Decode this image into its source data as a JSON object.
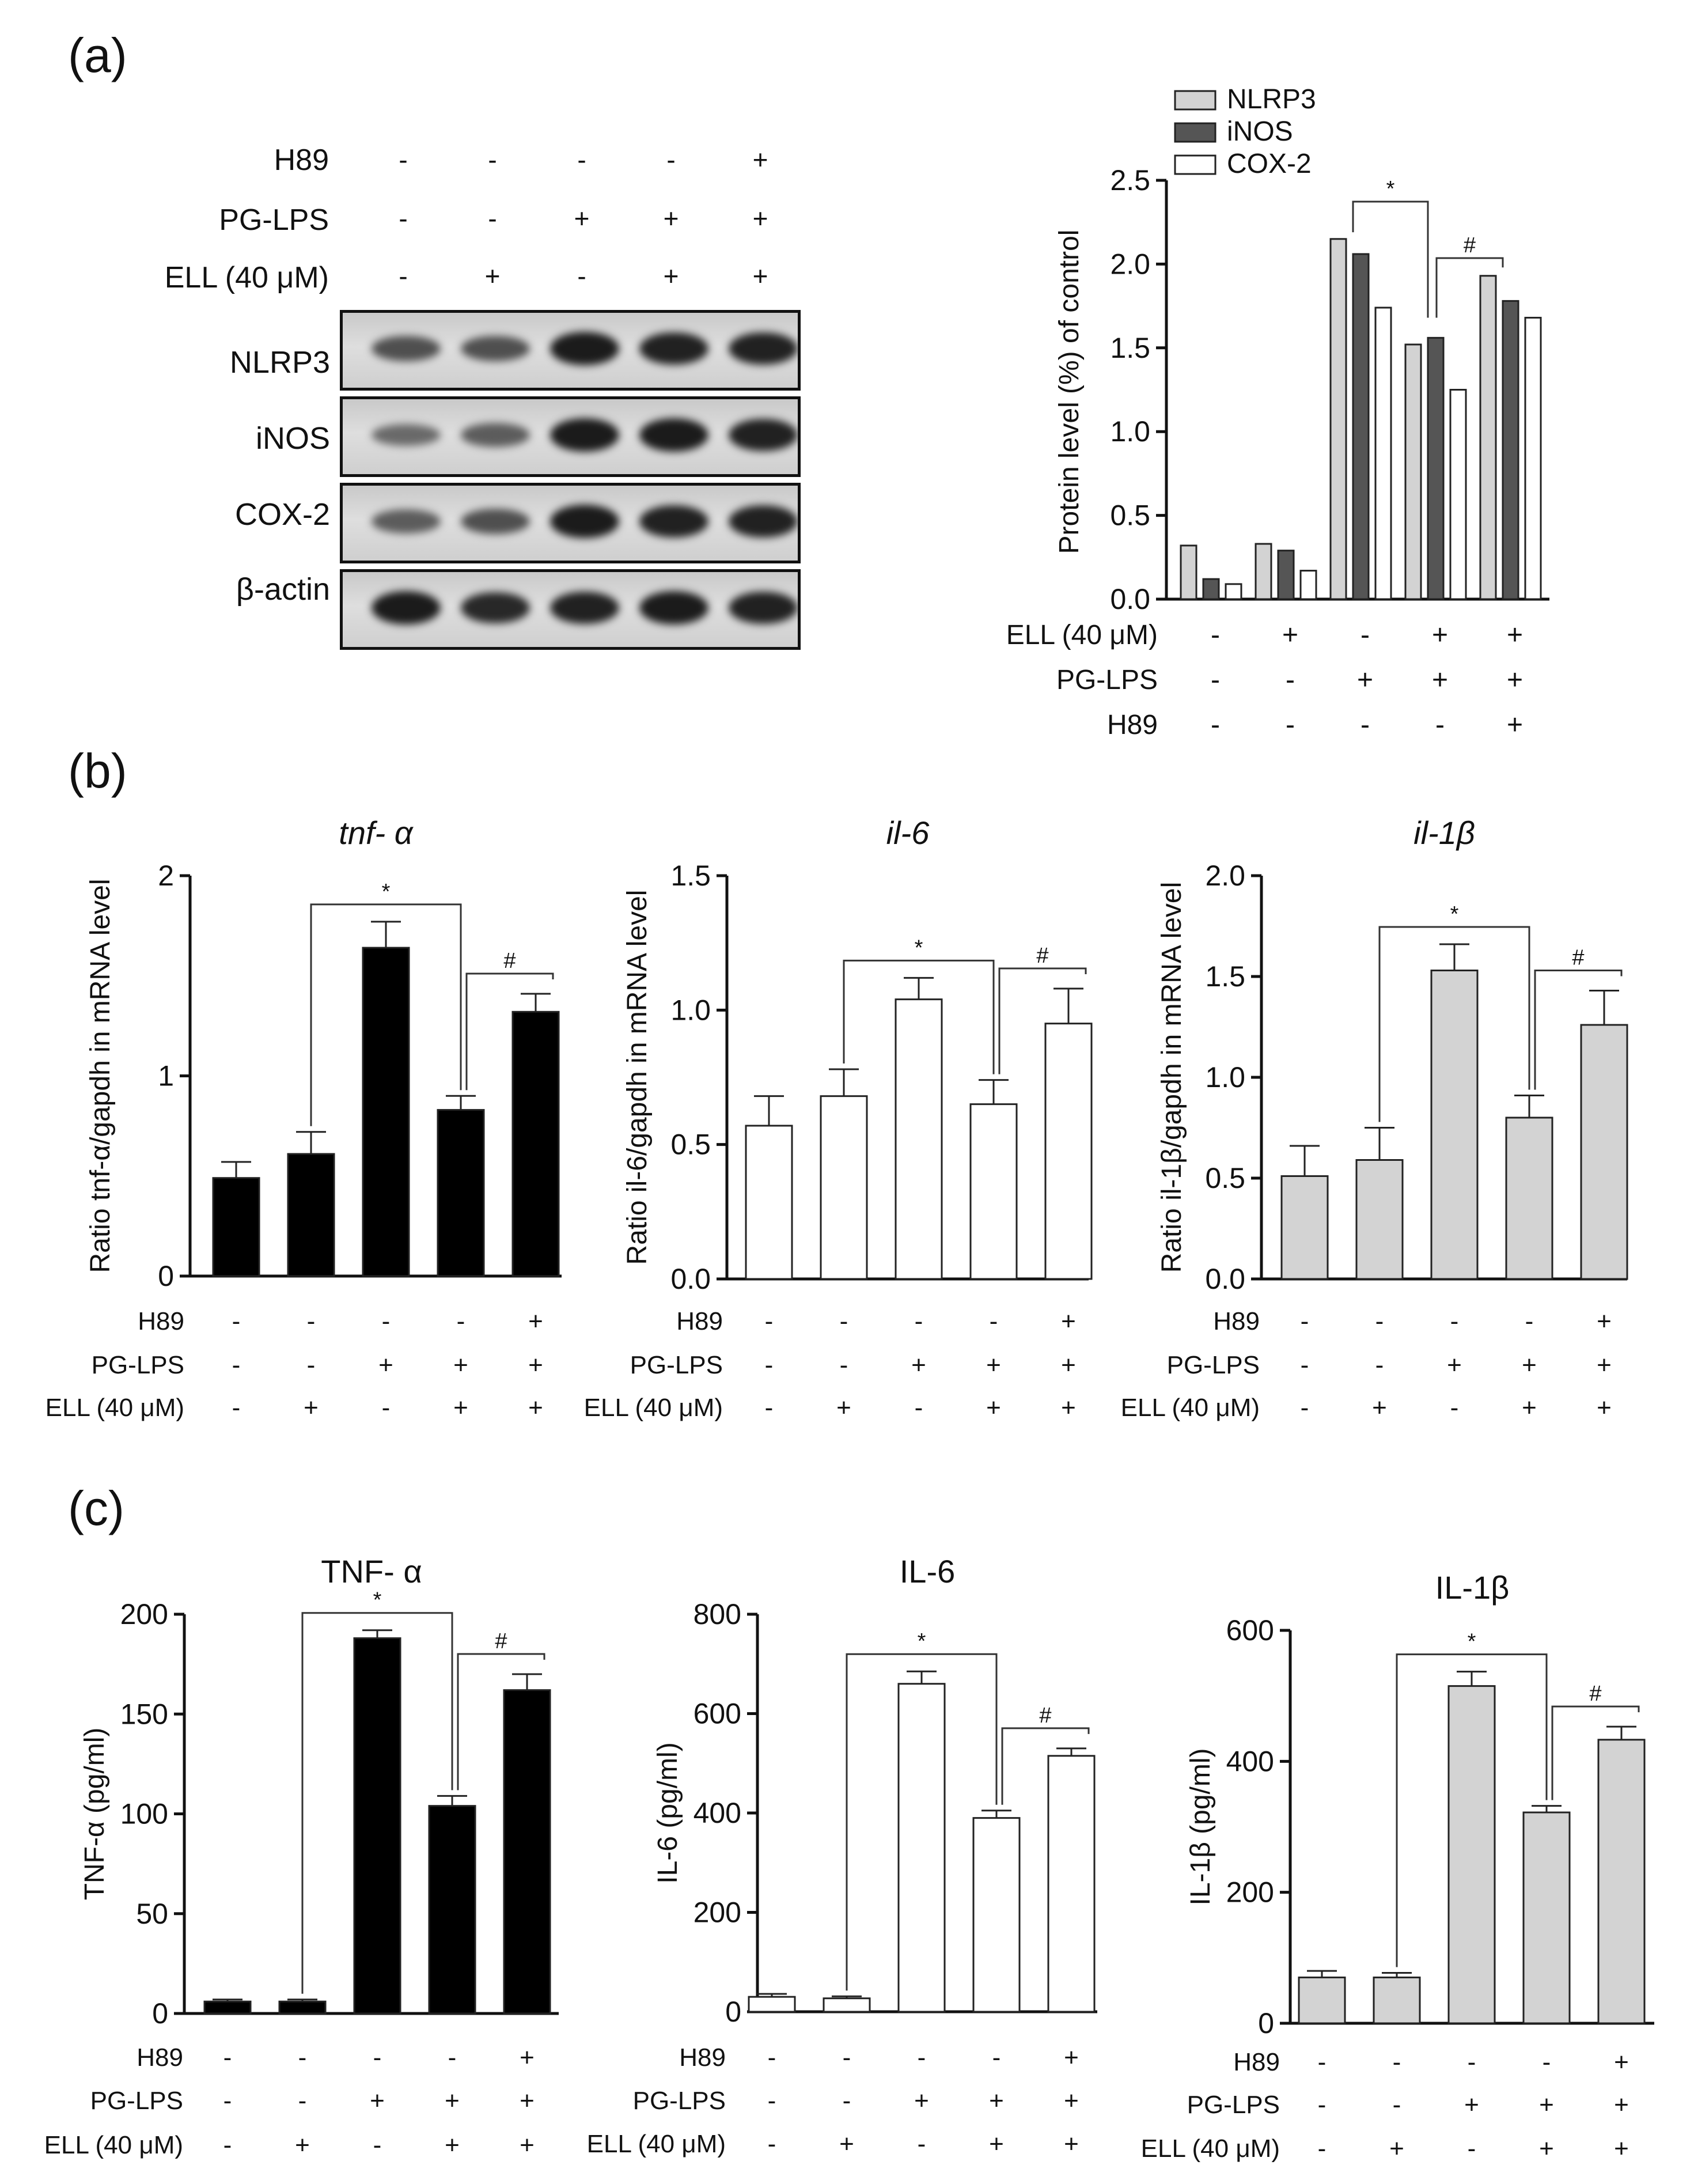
{
  "panel_labels": {
    "a": "(a)",
    "b": "(b)",
    "c": "(c)"
  },
  "colors": {
    "nlrp3": "#d3d3d3",
    "inos": "#555555",
    "cox2": "#ffffff",
    "black_bar": "#000000",
    "white_bar": "#ffffff",
    "grey_bar": "#d3d3d3"
  },
  "treatment_labels": {
    "h89": "H89",
    "pglps": "PG-LPS",
    "ell": "ELL (40 μM)"
  },
  "treatment_signs": {
    "h89": [
      "-",
      "-",
      "-",
      "-",
      "+"
    ],
    "pglps": [
      "-",
      "-",
      "+",
      "+",
      "+"
    ],
    "ell": [
      "-",
      "+",
      "-",
      "+",
      "+"
    ]
  },
  "western_blot": {
    "header_signs": {
      "h89": [
        "-",
        "-",
        "-",
        "-",
        "+"
      ],
      "pglps": [
        "-",
        "-",
        "+",
        "+",
        "+"
      ],
      "ell": [
        "-",
        "+",
        "-",
        "+",
        "+"
      ]
    },
    "rows": [
      {
        "label": "NLRP3",
        "intensity": [
          0.55,
          0.55,
          0.95,
          0.9,
          0.9
        ]
      },
      {
        "label": "iNOS",
        "intensity": [
          0.35,
          0.45,
          0.95,
          0.95,
          0.9
        ]
      },
      {
        "label": "COX-2",
        "intensity": [
          0.45,
          0.55,
          0.95,
          0.9,
          0.9
        ]
      },
      {
        "label": "β-actin",
        "intensity": [
          0.95,
          0.85,
          0.9,
          0.95,
          0.9
        ]
      }
    ]
  },
  "chart_data": [
    {
      "id": "a",
      "type": "bar",
      "title": "",
      "xlabel": "",
      "ylabel": "Protein level (%) of control",
      "ylim": [
        0,
        2.5
      ],
      "yticks": [
        "0.0",
        "0.5",
        "1.0",
        "1.5",
        "2.0",
        "2.5"
      ],
      "legend": [
        "NLRP3",
        "iNOS",
        "COX-2"
      ],
      "legend_position": "top-left",
      "series": [
        {
          "name": "NLRP3",
          "values": [
            0.32,
            0.33,
            2.15,
            1.52,
            1.93
          ]
        },
        {
          "name": "iNOS",
          "values": [
            0.12,
            0.29,
            2.06,
            1.56,
            1.78
          ]
        },
        {
          "name": "COX-2",
          "values": [
            0.09,
            0.17,
            1.74,
            1.25,
            1.68
          ]
        }
      ],
      "treatment_order": [
        "ell",
        "pglps",
        "h89"
      ],
      "annotations": [
        "*",
        "#"
      ]
    },
    {
      "id": "b1",
      "type": "bar",
      "title": "tnf- α",
      "ylabel": "Ratio tnf-α/gapdh in mRNA level",
      "ylim": [
        0,
        2
      ],
      "yticks": [
        "0",
        "1",
        "2"
      ],
      "values": [
        0.49,
        0.61,
        1.64,
        0.83,
        1.32
      ],
      "errors": [
        0.08,
        0.11,
        0.13,
        0.07,
        0.09
      ],
      "fill": "black",
      "annotations": [
        "*",
        "#"
      ]
    },
    {
      "id": "b2",
      "type": "bar",
      "title": "il-6",
      "ylabel": "Ratio il-6/gapdh in mRNA level",
      "ylim": [
        0,
        1.5
      ],
      "yticks": [
        "0.0",
        "0.5",
        "1.0",
        "1.5"
      ],
      "values": [
        0.57,
        0.68,
        1.04,
        0.65,
        0.95
      ],
      "errors": [
        0.11,
        0.1,
        0.08,
        0.09,
        0.13
      ],
      "fill": "white",
      "annotations": [
        "*",
        "#"
      ]
    },
    {
      "id": "b3",
      "type": "bar",
      "title": "il-1β",
      "ylabel": "Ratio il-1β/gapdh in mRNA level",
      "ylim": [
        0,
        2.0
      ],
      "yticks": [
        "0.0",
        "0.5",
        "1.0",
        "1.5",
        "2.0"
      ],
      "values": [
        0.51,
        0.59,
        1.53,
        0.8,
        1.26
      ],
      "errors": [
        0.15,
        0.16,
        0.13,
        0.11,
        0.17
      ],
      "fill": "grey",
      "annotations": [
        "*",
        "#"
      ]
    },
    {
      "id": "c1",
      "type": "bar",
      "title": "TNF- α",
      "ylabel": "TNF-α (pg/ml)",
      "ylim": [
        0,
        200
      ],
      "yticks": [
        "0",
        "50",
        "100",
        "150",
        "200"
      ],
      "values": [
        6,
        6,
        188,
        104,
        162
      ],
      "errors": [
        1,
        1,
        4,
        5,
        8
      ],
      "fill": "black",
      "annotations": [
        "*",
        "#"
      ]
    },
    {
      "id": "c2",
      "type": "bar",
      "title": "IL-6",
      "ylabel": "IL-6 (pg/ml)",
      "ylim": [
        0,
        800
      ],
      "yticks": [
        "0",
        "200",
        "400",
        "600",
        "800"
      ],
      "values": [
        30,
        27,
        660,
        390,
        515
      ],
      "errors": [
        6,
        4,
        25,
        15,
        15
      ],
      "fill": "white",
      "annotations": [
        "*",
        "#"
      ]
    },
    {
      "id": "c3",
      "type": "bar",
      "title": "IL-1β",
      "ylabel": "IL-1β (pg/ml)",
      "ylim": [
        0,
        600
      ],
      "yticks": [
        "0",
        "200",
        "400",
        "600"
      ],
      "values": [
        70,
        70,
        515,
        322,
        433
      ],
      "errors": [
        10,
        7,
        22,
        10,
        20
      ],
      "fill": "grey",
      "annotations": [
        "*",
        "#"
      ]
    }
  ]
}
